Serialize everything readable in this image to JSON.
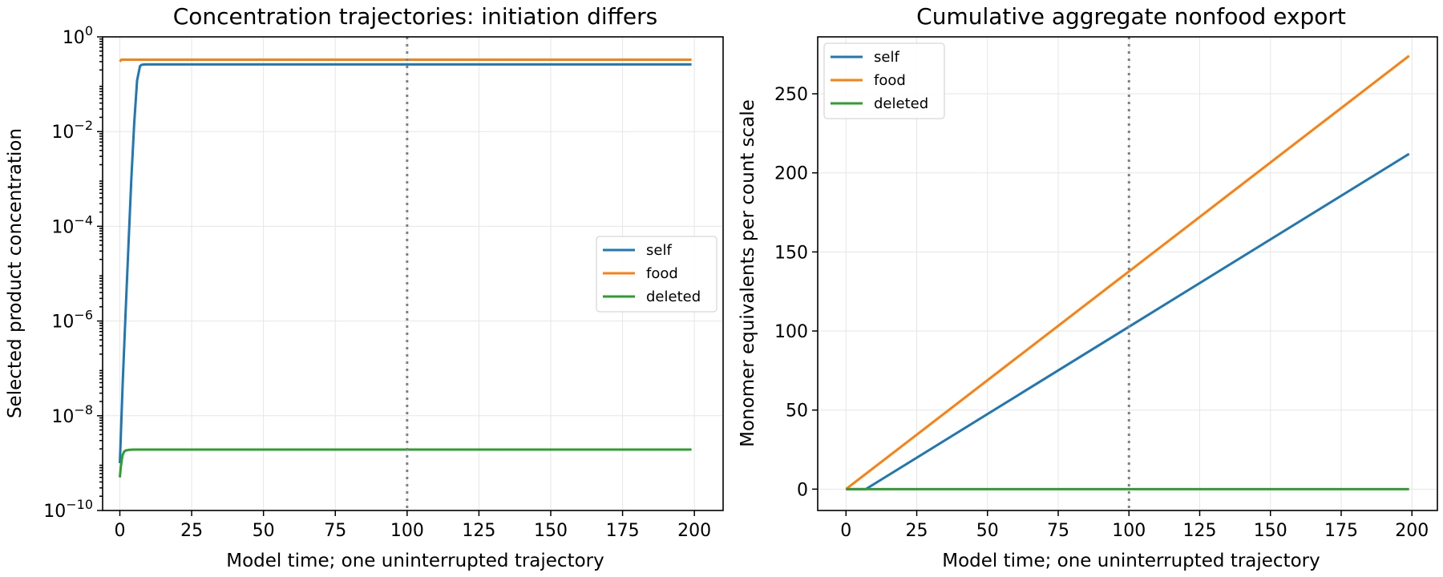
{
  "chart_data": [
    {
      "type": "line",
      "title": "Concentration trajectories: initiation differs",
      "xlabel": "Model time; one uninterrupted trajectory",
      "ylabel": "Selected product concentration",
      "xlim": [
        -6,
        210
      ],
      "ylim": [
        1e-10,
        1
      ],
      "yscale": "log",
      "xticks": [
        0,
        25,
        50,
        75,
        100,
        125,
        150,
        175,
        200
      ],
      "xtick_labels": [
        "0",
        "25",
        "50",
        "75",
        "100",
        "125",
        "150",
        "175",
        "200"
      ],
      "yticks": [
        1e-10,
        1e-08,
        1e-06,
        0.0001,
        0.01,
        1
      ],
      "ytick_labels": [
        {
          "base": "10",
          "exp": "−10"
        },
        {
          "base": "10",
          "exp": "−8"
        },
        {
          "base": "10",
          "exp": "−6"
        },
        {
          "base": "10",
          "exp": "−4"
        },
        {
          "base": "10",
          "exp": "−2"
        },
        {
          "base": "10",
          "exp": "0"
        }
      ],
      "grid": true,
      "vline_x": 100,
      "legend_position": "center-right",
      "series": [
        {
          "name": "self",
          "color": "#1f77b4",
          "x": [
            0,
            1,
            2,
            3,
            4,
            5,
            6,
            7,
            7.5,
            8,
            9,
            10,
            20,
            50,
            100,
            150,
            199
          ],
          "y": [
            1e-09,
            5e-08,
            1.5e-06,
            4e-05,
            0.001,
            0.015,
            0.12,
            0.24,
            0.255,
            0.26,
            0.262,
            0.262,
            0.262,
            0.262,
            0.262,
            0.262,
            0.262
          ]
        },
        {
          "name": "food",
          "color": "#ff7f0e",
          "x": [
            0,
            0.5,
            1,
            2,
            5,
            10,
            50,
            100,
            150,
            199
          ],
          "y": [
            0.3,
            0.33,
            0.33,
            0.33,
            0.33,
            0.33,
            0.33,
            0.33,
            0.33,
            0.33
          ]
        },
        {
          "name": "deleted",
          "color": "#2ca02c",
          "x": [
            0,
            0.3,
            0.7,
            1,
            1.5,
            2,
            3,
            4,
            5,
            10,
            50,
            100,
            150,
            199
          ],
          "y": [
            5e-10,
            8e-10,
            1.2e-09,
            1.5e-09,
            1.75e-09,
            1.85e-09,
            1.9e-09,
            1.92e-09,
            1.93e-09,
            1.93e-09,
            1.93e-09,
            1.93e-09,
            1.93e-09,
            1.93e-09
          ]
        }
      ]
    },
    {
      "type": "line",
      "title": "Cumulative aggregate nonfood export",
      "xlabel": "Model time; one uninterrupted trajectory",
      "ylabel": "Monomer equivalents per count scale",
      "xlim": [
        -10,
        209
      ],
      "ylim": [
        -13.5,
        286
      ],
      "yscale": "linear",
      "xticks": [
        0,
        25,
        50,
        75,
        100,
        125,
        150,
        175,
        200
      ],
      "xtick_labels": [
        "0",
        "25",
        "50",
        "75",
        "100",
        "125",
        "150",
        "175",
        "200"
      ],
      "yticks": [
        0,
        50,
        100,
        150,
        200,
        250
      ],
      "ytick_labels": [
        "0",
        "50",
        "100",
        "150",
        "200",
        "250"
      ],
      "grid": true,
      "vline_x": 100,
      "legend_position": "top-left",
      "series": [
        {
          "name": "self",
          "color": "#1f77b4",
          "x": [
            0,
            7,
            199
          ],
          "y": [
            0,
            0,
            212
          ]
        },
        {
          "name": "food",
          "color": "#ff7f0e",
          "x": [
            0,
            199
          ],
          "y": [
            0,
            274
          ]
        },
        {
          "name": "deleted",
          "color": "#2ca02c",
          "x": [
            0,
            199
          ],
          "y": [
            0,
            0
          ]
        }
      ]
    }
  ]
}
